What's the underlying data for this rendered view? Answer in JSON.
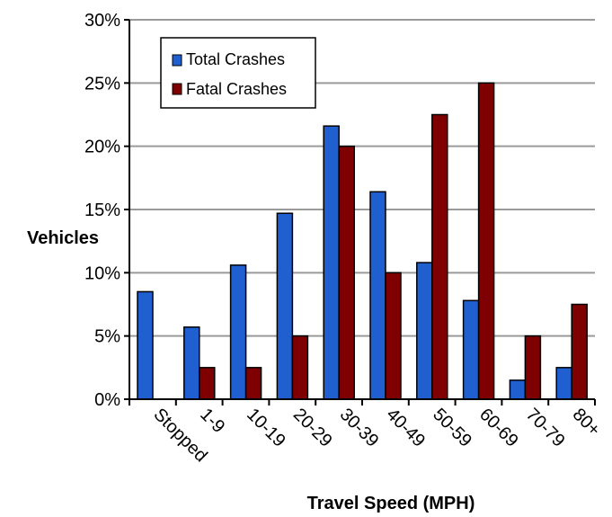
{
  "chart_data": {
    "type": "bar",
    "categories": [
      "Stopped",
      "1-9",
      "10-19",
      "20-29",
      "30-39",
      "40-49",
      "50-59",
      "60-69",
      "70-79",
      "80+"
    ],
    "series": [
      {
        "name": "Total Crashes",
        "color": "#1f5fcf",
        "values": [
          8.5,
          5.7,
          10.6,
          14.7,
          21.6,
          16.4,
          10.8,
          7.8,
          1.5,
          2.5
        ]
      },
      {
        "name": "Fatal Crashes",
        "color": "#7f0000",
        "values": [
          0,
          2.5,
          2.5,
          5,
          20,
          10,
          22.5,
          25,
          5,
          7.5
        ]
      }
    ],
    "yticks": [
      "0%",
      "5%",
      "10%",
      "15%",
      "20%",
      "25%",
      "30%"
    ],
    "ylim": [
      0,
      30
    ],
    "xlabel": "Travel Speed (MPH)",
    "ylabel": "Vehicles",
    "grid": true,
    "legend_position": "top-left"
  }
}
